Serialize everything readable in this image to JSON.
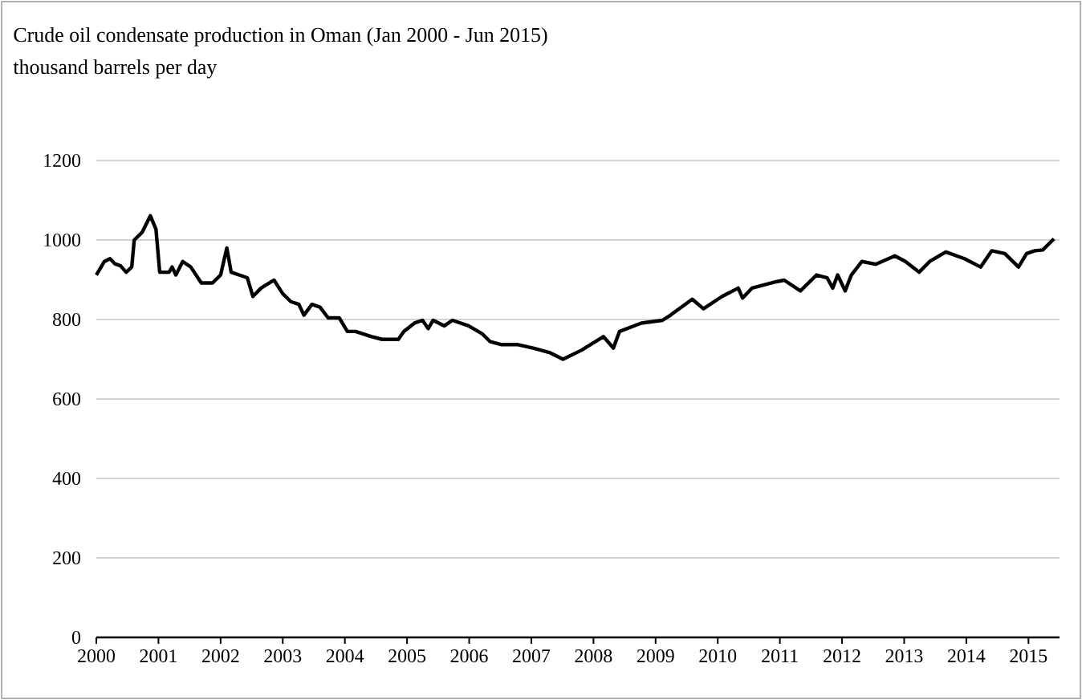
{
  "chart_data": {
    "type": "line",
    "title": "Crude oil condensate production in Oman (Jan 2000 - Jun 2015)",
    "subtitle": "thousand barrels per day",
    "x": [
      2000.0,
      2000.13,
      2000.22,
      2000.3,
      2000.39,
      2000.48,
      2000.57,
      2000.61,
      2000.74,
      2000.87,
      2000.96,
      2001.02,
      2001.17,
      2001.22,
      2001.28,
      2001.39,
      2001.52,
      2001.69,
      2001.87,
      2002.0,
      2002.1,
      2002.17,
      2002.43,
      2002.52,
      2002.65,
      2002.86,
      2003.0,
      2003.13,
      2003.26,
      2003.34,
      2003.47,
      2003.6,
      2003.73,
      2003.91,
      2004.04,
      2004.17,
      2004.43,
      2004.6,
      2004.86,
      2004.95,
      2005.12,
      2005.25,
      2005.34,
      2005.42,
      2005.6,
      2005.73,
      2005.99,
      2006.21,
      2006.34,
      2006.51,
      2006.77,
      2007.03,
      2007.29,
      2007.51,
      2007.81,
      2008.16,
      2008.32,
      2008.42,
      2008.77,
      2009.11,
      2009.24,
      2009.59,
      2009.77,
      2010.07,
      2010.33,
      2010.4,
      2010.55,
      2010.94,
      2011.07,
      2011.33,
      2011.59,
      2011.76,
      2011.85,
      2011.93,
      2012.05,
      2012.15,
      2012.32,
      2012.54,
      2012.85,
      2013.02,
      2013.24,
      2013.41,
      2013.67,
      2013.97,
      2014.23,
      2014.41,
      2014.62,
      2014.84,
      2014.97,
      2015.1,
      2015.23,
      2015.41
    ],
    "values": [
      912,
      946,
      953,
      940,
      935,
      919,
      932,
      1000,
      1020,
      1061,
      1027,
      919,
      919,
      932,
      912,
      946,
      932,
      892,
      892,
      912,
      980,
      919,
      905,
      858,
      879,
      899,
      865,
      845,
      838,
      811,
      838,
      831,
      804,
      804,
      770,
      770,
      757,
      750,
      750,
      770,
      791,
      798,
      777,
      798,
      784,
      798,
      784,
      764,
      744,
      737,
      737,
      728,
      717,
      700,
      723,
      757,
      728,
      770,
      791,
      798,
      811,
      851,
      827,
      858,
      879,
      854,
      879,
      895,
      899,
      872,
      912,
      905,
      879,
      912,
      872,
      912,
      946,
      939,
      960,
      946,
      919,
      946,
      970,
      953,
      932,
      973,
      966,
      932,
      966,
      973,
      975,
      1003
    ],
    "color": "#000000",
    "line_style": "solid",
    "xlim": [
      2000,
      2015.5
    ],
    "xticks": [
      2000,
      2001,
      2002,
      2003,
      2004,
      2005,
      2006,
      2007,
      2008,
      2009,
      2010,
      2011,
      2012,
      2013,
      2014,
      2015
    ],
    "ylim": [
      0,
      1200
    ],
    "yticks": [
      0,
      200,
      400,
      600,
      800,
      1000,
      1200
    ],
    "grid": "y"
  }
}
